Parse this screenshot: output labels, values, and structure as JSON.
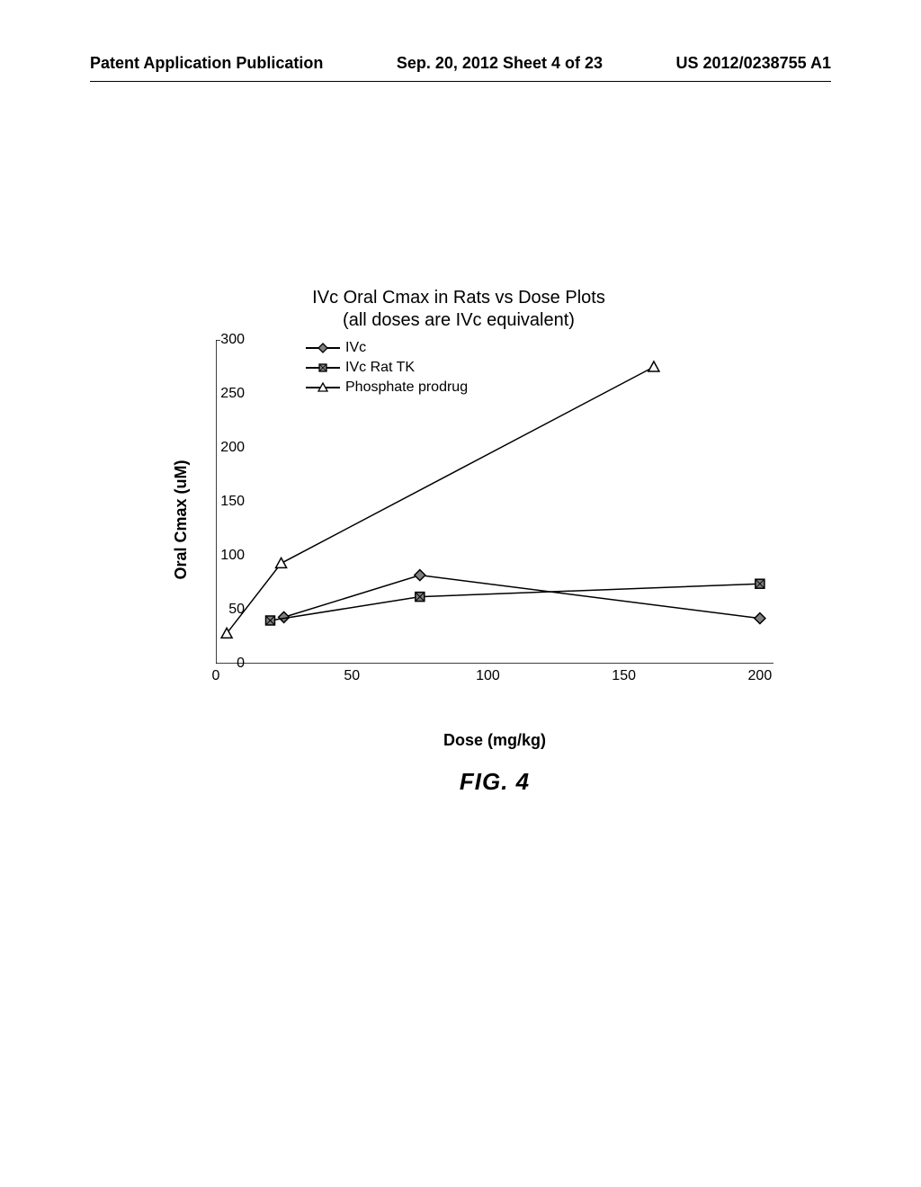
{
  "header": {
    "left": "Patent Application Publication",
    "center": "Sep. 20, 2012  Sheet 4 of 23",
    "right": "US 2012/0238755 A1"
  },
  "chart": {
    "type": "line",
    "title": "IVc Oral Cmax in Rats vs Dose Plots",
    "subtitle": "(all doses are IVc equivalent)",
    "xlabel": "Dose (mg/kg)",
    "ylabel": "Oral Cmax (uM)",
    "xlim": [
      0,
      205
    ],
    "ylim": [
      0,
      300
    ],
    "xticks": [
      0,
      50,
      100,
      150,
      200
    ],
    "yticks": [
      0,
      50,
      100,
      150,
      200,
      250,
      300
    ],
    "ytick_minor": 1,
    "xtick_minor": 1,
    "background_color": "#ffffff",
    "axis_color": "#000000",
    "axis_width": 1.5,
    "tick_fontsize": 16,
    "label_fontsize": 18,
    "label_fontweight": "bold",
    "title_fontsize": 20,
    "series": [
      {
        "name": "IVc",
        "marker": "diamond",
        "line_width": 1.5,
        "color": "#000000",
        "fill": "#808080",
        "x": [
          25,
          75,
          200
        ],
        "y": [
          43,
          82,
          42
        ]
      },
      {
        "name": "IVc Rat TK",
        "marker": "square",
        "line_width": 1.5,
        "color": "#000000",
        "fill": "#808080",
        "x": [
          20,
          75,
          200
        ],
        "y": [
          40,
          62,
          74
        ]
      },
      {
        "name": "Phosphate prodrug",
        "marker": "triangle",
        "line_width": 1.5,
        "color": "#000000",
        "fill": "#ffffff",
        "x": [
          4,
          24,
          161
        ],
        "y": [
          28,
          93,
          275
        ]
      }
    ],
    "legend_position": "upper-inside-left"
  },
  "figure_label": "FIG. 4"
}
